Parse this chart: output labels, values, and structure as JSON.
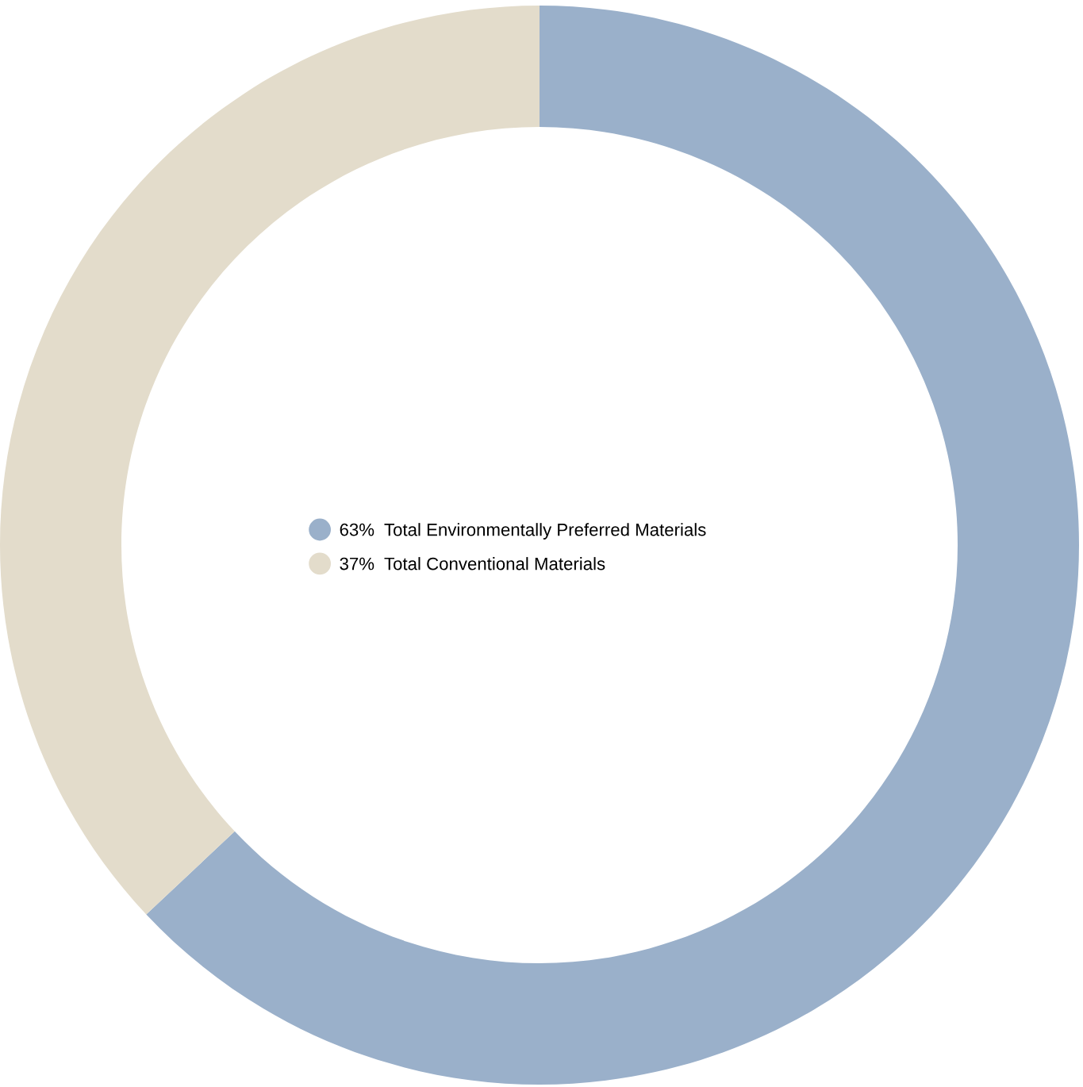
{
  "chart_data": {
    "type": "donut",
    "categories": [
      "Total Environmentally Preferred Materials",
      "Total Conventional Materials"
    ],
    "values": [
      63,
      37
    ],
    "colors": [
      "#9ab0ca",
      "#e3dccb"
    ],
    "value_labels": [
      "63%",
      "37%"
    ],
    "legend": "center"
  }
}
